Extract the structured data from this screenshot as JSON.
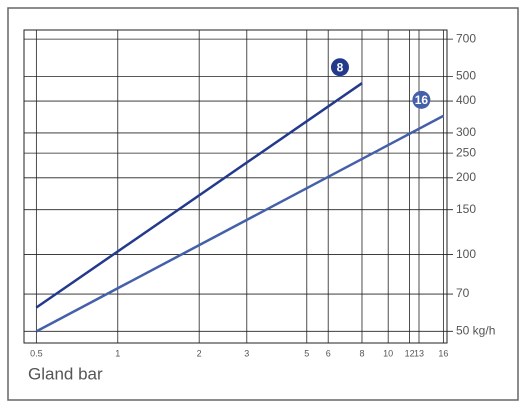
{
  "chart_data": {
    "type": "line",
    "x_label": "Gland bar",
    "xscale": "log",
    "yscale": "log",
    "grid": true,
    "xlim": [
      0.45,
      16.5
    ],
    "ylim": [
      45,
      760
    ],
    "xticks": [
      0.5,
      1,
      2,
      3,
      5,
      6,
      8,
      10,
      12,
      13,
      16
    ],
    "yticks": [
      {
        "value": 50,
        "label": "50 kg/h"
      },
      70,
      100,
      150,
      200,
      250,
      300,
      400,
      500,
      700
    ],
    "series": [
      {
        "name": "8",
        "color": "#233a8c",
        "x": [
          0.5,
          8
        ],
        "values": [
          62,
          470
        ]
      },
      {
        "name": "16",
        "color": "#4560aa",
        "x": [
          0.5,
          16
        ],
        "values": [
          50,
          350
        ]
      }
    ]
  }
}
